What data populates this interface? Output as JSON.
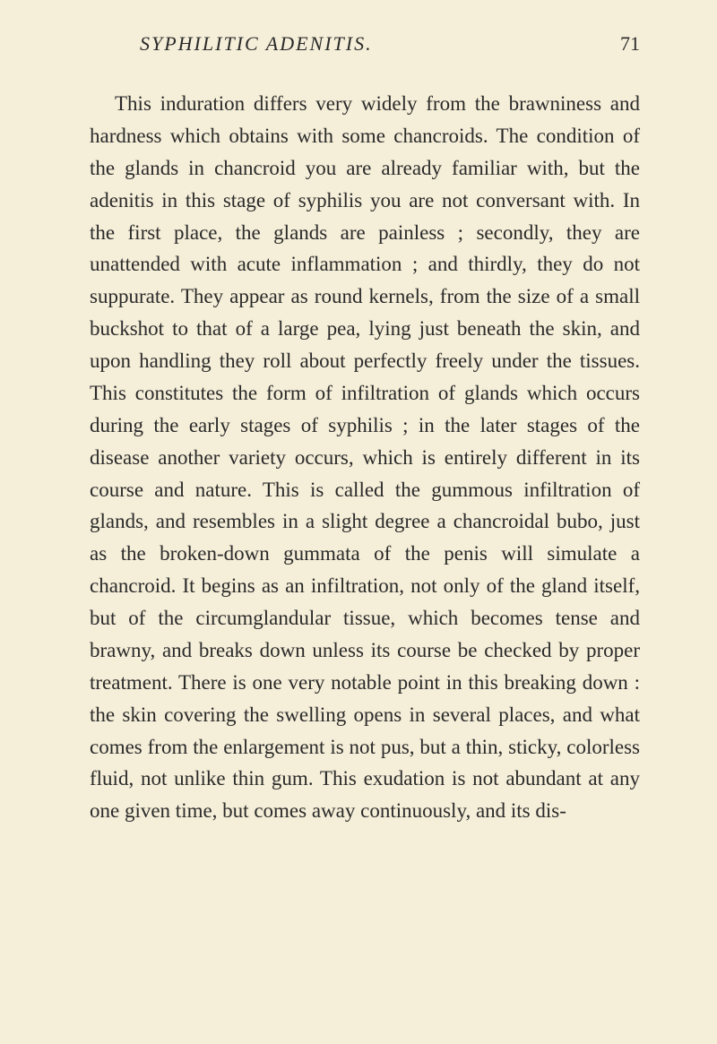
{
  "header": {
    "title": "SYPHILITIC ADENITIS.",
    "page_number": "71"
  },
  "paragraph": {
    "text": "This induration differs very widely from the brawniness and hardness which obtains with some chancroids. The condition of the glands in chancroid you are already familiar with, but the adenitis in this stage of syphilis you are not conversant with. In the first place, the glands are painless ; secondly, they are unattended with acute inflammation ; and thirdly, they do not suppurate. They appear as round kernels, from the size of a small buckshot to that of a large pea, lying just beneath the skin, and upon handling they roll about perfectly freely under the tissues. This constitutes the form of infiltration of glands which occurs during the early stages of syphilis ; in the later stages of the disease another variety occurs, which is entirely different in its course and nature. This is called the gummous infiltration of glands, and resembles in a slight degree a chancroidal bubo, just as the broken-down gummata of the penis will simulate a chancroid. It begins as an infiltration, not only of the gland itself, but of the circumglandular tissue, which becomes tense and brawny, and breaks down unless its course be checked by proper treatment. There is one very notable point in this breaking down : the skin covering the swelling opens in several places, and what comes from the enlargement is not pus, but a thin, sticky, colorless fluid, not unlike thin gum. This exudation is not abundant at any one given time, but comes away continuously, and its dis-"
  },
  "colors": {
    "page_background": "#f5eed8",
    "text_color": "#2a2a2a"
  },
  "typography": {
    "body_font_size": 23,
    "header_font_size": 22,
    "line_height": 1.56
  }
}
